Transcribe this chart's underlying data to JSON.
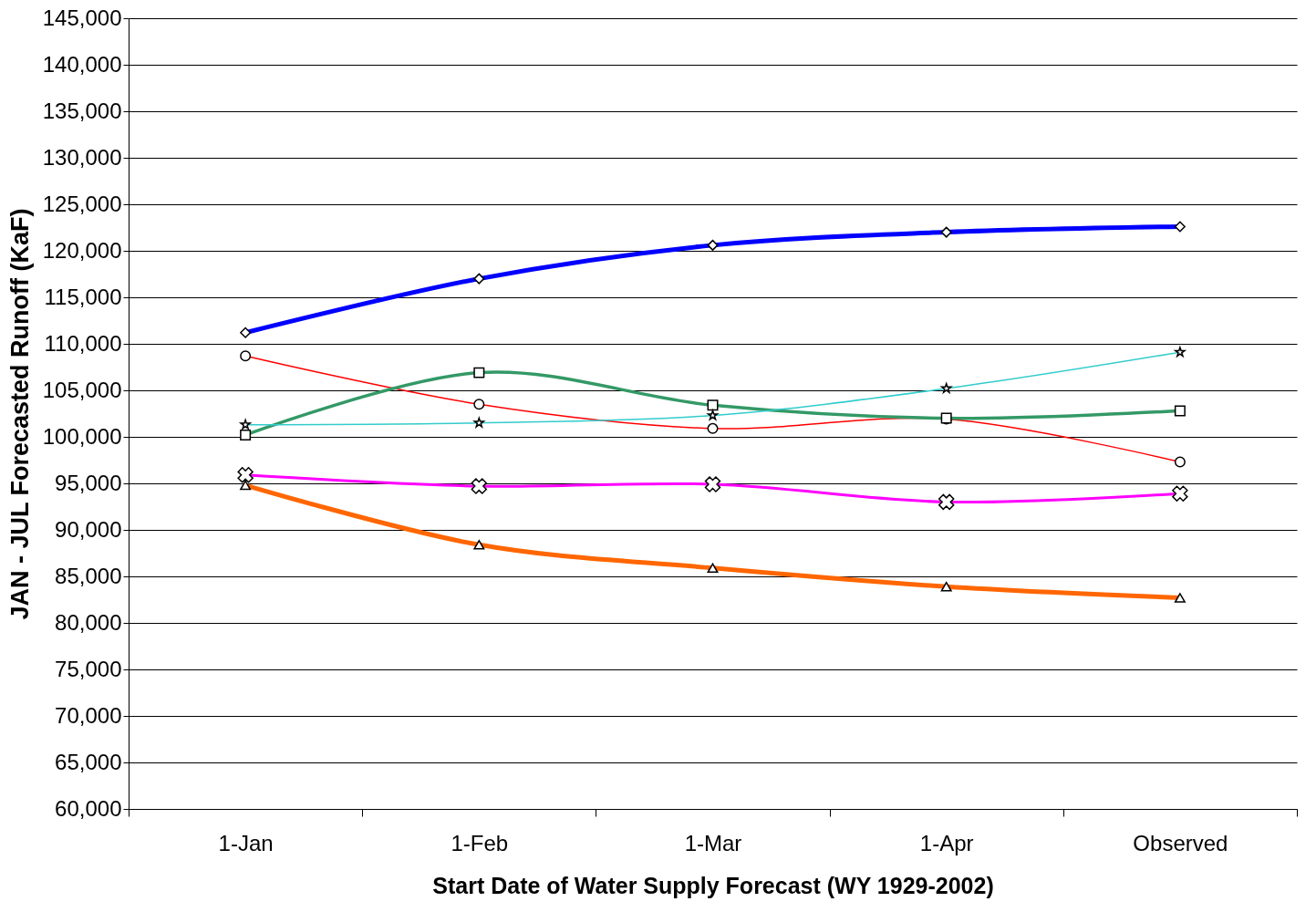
{
  "chart_data": {
    "type": "line",
    "xlabel": "Start Date of Water Supply Forecast (WY 1929-2002)",
    "ylabel": "JAN - JUL Forecasted Runoff (KaF)",
    "categories": [
      "1-Jan",
      "1-Feb",
      "1-Mar",
      "1-Apr",
      "Observed"
    ],
    "series": [
      {
        "color": "#0000ff",
        "marker": "diamond",
        "values": [
          111200,
          117000,
          120600,
          122000,
          122600
        ]
      },
      {
        "color": "#ff0000",
        "marker": "circle",
        "values": [
          108700,
          103500,
          100900,
          101900,
          97300
        ]
      },
      {
        "color": "#339966",
        "marker": "square",
        "values": [
          100200,
          106900,
          103400,
          102000,
          102800
        ]
      },
      {
        "color": "#33cccc",
        "marker": "star",
        "values": [
          101300,
          101500,
          102300,
          105200,
          109100
        ]
      },
      {
        "color": "#ff00ff",
        "marker": "cross",
        "values": [
          95900,
          94700,
          94900,
          93000,
          93900
        ]
      },
      {
        "color": "#ff6600",
        "marker": "triangle",
        "values": [
          94800,
          88400,
          85900,
          83900,
          82700
        ]
      }
    ],
    "ylim": [
      60000,
      145000
    ],
    "yticks": [
      {
        "value": 60000,
        "label": "60,000"
      },
      {
        "value": 65000,
        "label": "65,000"
      },
      {
        "value": 70000,
        "label": "70,000"
      },
      {
        "value": 75000,
        "label": "75,000"
      },
      {
        "value": 80000,
        "label": "80,000"
      },
      {
        "value": 85000,
        "label": "85,000"
      },
      {
        "value": 90000,
        "label": "90,000"
      },
      {
        "value": 95000,
        "label": "95,000"
      },
      {
        "value": 100000,
        "label": "100,000"
      },
      {
        "value": 105000,
        "label": "105,000"
      },
      {
        "value": 110000,
        "label": "110,000"
      },
      {
        "value": 115000,
        "label": "115,000"
      },
      {
        "value": 120000,
        "label": "120,000"
      },
      {
        "value": 125000,
        "label": "125,000"
      },
      {
        "value": 130000,
        "label": "130,000"
      },
      {
        "value": 135000,
        "label": "135,000"
      },
      {
        "value": 140000,
        "label": "140,000"
      },
      {
        "value": 145000,
        "label": "145,000"
      }
    ],
    "grid": "y"
  }
}
